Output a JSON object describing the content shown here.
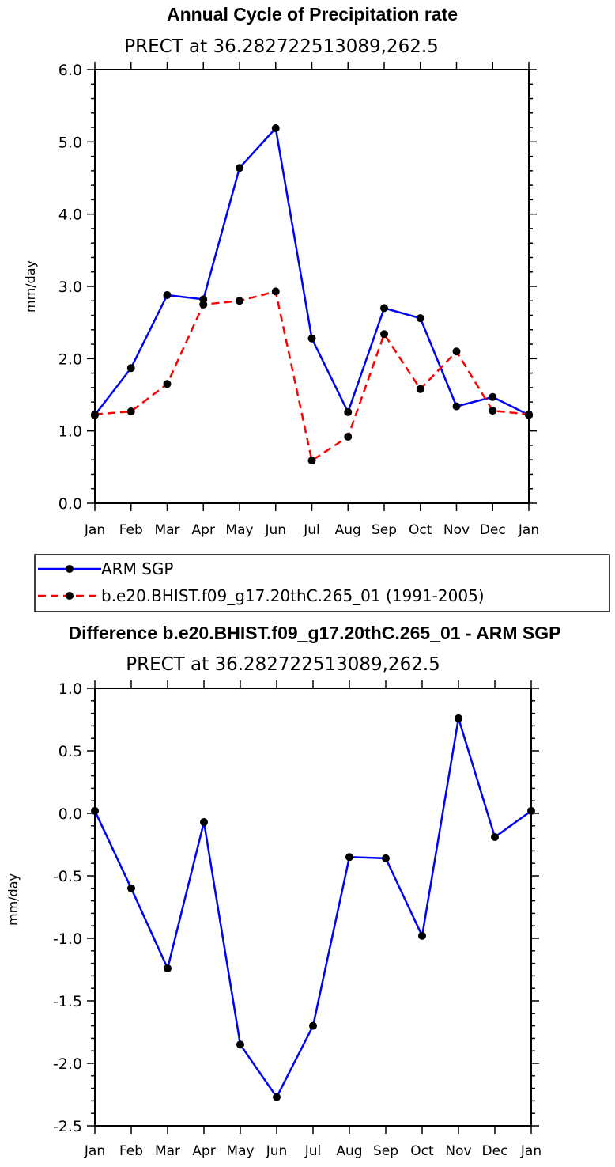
{
  "chart_data": [
    {
      "type": "line",
      "title": "Annual Cycle of Precipitation rate",
      "subtitle": "PRECT at 36.282722513089,262.5",
      "ylabel": "mm/day",
      "xlabel": "",
      "categories": [
        "Jan",
        "Feb",
        "Mar",
        "Apr",
        "May",
        "Jun",
        "Jul",
        "Aug",
        "Sep",
        "Oct",
        "Nov",
        "Dec",
        "Jan"
      ],
      "ylim": [
        0.0,
        6.0
      ],
      "yticks": [
        "0.0",
        "1.0",
        "2.0",
        "3.0",
        "4.0",
        "5.0",
        "6.0"
      ],
      "grid": false,
      "legend_position": "bottom",
      "series": [
        {
          "name": "ARM SGP",
          "color": "#0000ff",
          "line_style": "solid",
          "values": [
            1.22,
            1.87,
            2.88,
            2.82,
            4.64,
            5.19,
            2.28,
            1.26,
            2.7,
            2.56,
            1.34,
            1.47,
            1.22
          ]
        },
        {
          "name": "b.e20.BHIST.f09_g17.20thC.265_01 (1991-2005)",
          "color": "#ff0000",
          "line_style": "dashed",
          "values": [
            1.23,
            1.27,
            1.65,
            2.75,
            2.8,
            2.93,
            0.59,
            0.92,
            2.34,
            1.58,
            2.1,
            1.28,
            1.23
          ]
        }
      ]
    },
    {
      "type": "line",
      "title": "Difference b.e20.BHIST.f09_g17.20thC.265_01 - ARM SGP",
      "subtitle": "PRECT at 36.282722513089,262.5",
      "ylabel": "mm/day",
      "xlabel": "",
      "categories": [
        "Jan",
        "Feb",
        "Mar",
        "Apr",
        "May",
        "Jun",
        "Jul",
        "Aug",
        "Sep",
        "Oct",
        "Nov",
        "Dec",
        "Jan"
      ],
      "ylim": [
        -2.5,
        1.0
      ],
      "yticks": [
        "-2.5",
        "-2.0",
        "-1.5",
        "-1.0",
        "-0.5",
        "0.0",
        "0.5",
        "1.0"
      ],
      "grid": false,
      "series": [
        {
          "color": "#0000ff",
          "line_style": "solid",
          "values": [
            0.02,
            -0.6,
            -1.24,
            -0.07,
            -1.85,
            -2.27,
            -1.7,
            -0.35,
            -0.36,
            -0.98,
            0.76,
            -0.19,
            0.02
          ]
        }
      ]
    }
  ]
}
